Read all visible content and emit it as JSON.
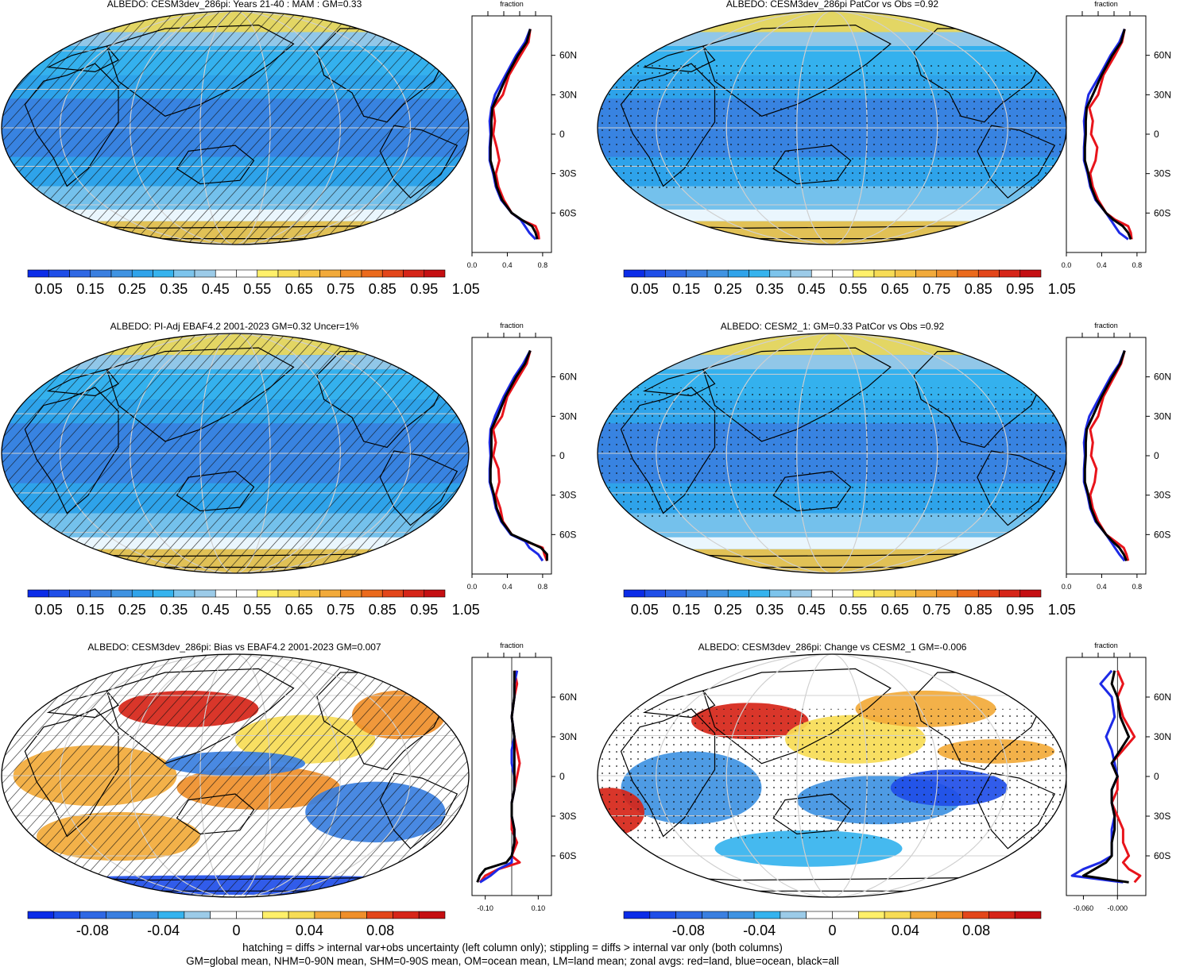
{
  "colors": {
    "scale": [
      "#0b2ce8",
      "#1f4ee8",
      "#2f68e4",
      "#3a7fe0",
      "#3f93e2",
      "#2fa3ea",
      "#35b3ee",
      "#7cc4ec",
      "#9ccbe8",
      "#ffffff",
      "#ffffff",
      "#fff06a",
      "#f7dc55",
      "#f5c446",
      "#f2aa3a",
      "#ef8f2a",
      "#eb6a1c",
      "#e3461a",
      "#d62518",
      "#c50f12"
    ],
    "diffscale": [
      "#0b2ce8",
      "#1f4ee8",
      "#2f68e4",
      "#3a7fe0",
      "#3f93e2",
      "#35b3ee",
      "#9ccbe8",
      "#ffffff",
      "#ffffff",
      "#fff06a",
      "#f7dc55",
      "#f2aa3a",
      "#ef8f2a",
      "#e3461a",
      "#d62518",
      "#c50f12"
    ],
    "land": "#000000",
    "zonal_land": "#e8141b",
    "zonal_ocean": "#1d2ae6",
    "zonal_all": "#000000"
  },
  "panels": [
    {
      "title": "ALBEDO: CESM3dev_286pi: Years 21-40 : MAM : GM=0.33",
      "cbar_labels": [
        "0.05",
        "0.15",
        "0.25",
        "0.35",
        "0.45",
        "0.55",
        "0.65",
        "0.75",
        "0.85",
        "0.95",
        "1.05"
      ],
      "zonal_ticks": [
        "0.0",
        "0.4",
        "0.8"
      ],
      "pattern": "hatch"
    },
    {
      "title": "ALBEDO: CESM3dev_286pi PatCor vs Obs =0.92",
      "cbar_labels": [
        "0.05",
        "0.15",
        "0.25",
        "0.35",
        "0.45",
        "0.55",
        "0.65",
        "0.75",
        "0.85",
        "0.95",
        "1.05"
      ],
      "zonal_ticks": [
        "0.0",
        "0.4",
        "0.8"
      ],
      "pattern": "stipple"
    },
    {
      "title": "ALBEDO: PI-Adj EBAF4.2 2001-2023 GM=0.32 Uncer=1%",
      "cbar_labels": [
        "0.05",
        "0.15",
        "0.25",
        "0.35",
        "0.45",
        "0.55",
        "0.65",
        "0.75",
        "0.85",
        "0.95",
        "1.05"
      ],
      "zonal_ticks": [
        "0.0",
        "0.4",
        "0.8"
      ],
      "pattern": "hatch"
    },
    {
      "title": "ALBEDO: CESM2_1: GM=0.33 PatCor vs Obs =0.92",
      "cbar_labels": [
        "0.05",
        "0.15",
        "0.25",
        "0.35",
        "0.45",
        "0.55",
        "0.65",
        "0.75",
        "0.85",
        "0.95",
        "1.05"
      ],
      "zonal_ticks": [
        "0.0",
        "0.4",
        "0.8"
      ],
      "pattern": "stipple"
    },
    {
      "title": "ALBEDO: CESM3dev_286pi: Bias vs EBAF4.2 2001-2023 GM=0.007",
      "cbar_labels": [
        "-0.08",
        "-0.04",
        "0",
        "0.04",
        "0.08"
      ],
      "zonal_ticks": [
        "-0.10",
        "0.10"
      ],
      "pattern": "hatch"
    },
    {
      "title": "ALBEDO: CESM3dev_286pi: Change vs CESM2_1 GM=-0.006",
      "cbar_labels": [
        "-0.08",
        "-0.04",
        "0",
        "0.04",
        "0.08"
      ],
      "zonal_ticks": [
        "-0.060",
        "-0.000"
      ],
      "pattern": "stipple"
    }
  ],
  "zonal": {
    "axis_title": "fraction",
    "lat_labels": [
      "60N",
      "30N",
      "0",
      "30S",
      "60S"
    ]
  },
  "footer": {
    "line1": "hatching = diffs > internal var+obs uncertainty (left column only); stippling = diffs > internal var only (both columns)",
    "line2": "GM=global mean, NHM=0-90N mean, SHM=0-90S mean, OM=ocean mean, LM=land mean; zonal avgs: red=land, blue=ocean, black=all"
  },
  "chart_data": [
    {
      "type": "heatmap",
      "title": "ALBEDO: CESM3dev_286pi: Years 21-40 : MAM : GM=0.33",
      "colorbar": [
        0.05,
        0.15,
        0.25,
        0.35,
        0.45,
        0.55,
        0.65,
        0.75,
        0.85,
        0.95,
        1.05
      ],
      "global_mean": 0.33,
      "zonal": {
        "xlim": [
          0,
          0.9
        ],
        "lat": [
          80,
          70,
          60,
          45,
          30,
          20,
          10,
          0,
          -10,
          -20,
          -30,
          -40,
          -50,
          -60,
          -65,
          -70,
          -75,
          -80
        ],
        "land": [
          0.66,
          0.64,
          0.55,
          0.42,
          0.35,
          0.24,
          0.26,
          0.24,
          0.28,
          0.31,
          0.27,
          0.3,
          0.36,
          0.45,
          0.55,
          0.72,
          0.75,
          0.76
        ],
        "ocean": [
          0.66,
          0.6,
          0.5,
          0.38,
          0.26,
          0.22,
          0.2,
          0.21,
          0.2,
          0.2,
          0.24,
          0.27,
          0.33,
          0.45,
          0.55,
          0.6,
          0.65,
          0.72
        ],
        "all": [
          0.66,
          0.62,
          0.52,
          0.4,
          0.3,
          0.23,
          0.22,
          0.22,
          0.21,
          0.21,
          0.25,
          0.28,
          0.34,
          0.45,
          0.56,
          0.68,
          0.72,
          0.74
        ]
      }
    },
    {
      "type": "heatmap",
      "title": "ALBEDO: CESM3dev_286pi PatCor vs Obs =0.92",
      "colorbar": [
        0.05,
        0.15,
        0.25,
        0.35,
        0.45,
        0.55,
        0.65,
        0.75,
        0.85,
        0.95,
        1.05
      ],
      "pattern_correlation": 0.92,
      "zonal": {
        "xlim": [
          0,
          0.9
        ],
        "lat": [
          80,
          70,
          60,
          45,
          30,
          20,
          10,
          0,
          -10,
          -20,
          -30,
          -40,
          -50,
          -60,
          -65,
          -70,
          -75,
          -80
        ],
        "land": [
          0.66,
          0.63,
          0.55,
          0.42,
          0.36,
          0.26,
          0.3,
          0.28,
          0.35,
          0.33,
          0.27,
          0.3,
          0.36,
          0.45,
          0.55,
          0.7,
          0.73,
          0.74
        ],
        "ocean": [
          0.66,
          0.6,
          0.5,
          0.38,
          0.25,
          0.22,
          0.2,
          0.21,
          0.2,
          0.2,
          0.24,
          0.27,
          0.33,
          0.45,
          0.5,
          0.55,
          0.6,
          0.7
        ],
        "all": [
          0.66,
          0.62,
          0.52,
          0.4,
          0.3,
          0.23,
          0.22,
          0.22,
          0.21,
          0.21,
          0.25,
          0.28,
          0.34,
          0.45,
          0.53,
          0.64,
          0.7,
          0.73
        ]
      }
    },
    {
      "type": "heatmap",
      "title": "ALBEDO: PI-Adj EBAF4.2 2001-2023 GM=0.32 Uncer=1%",
      "colorbar": [
        0.05,
        0.15,
        0.25,
        0.35,
        0.45,
        0.55,
        0.65,
        0.75,
        0.85,
        0.95,
        1.05
      ],
      "global_mean": 0.32,
      "zonal": {
        "xlim": [
          0,
          0.9
        ],
        "lat": [
          80,
          70,
          60,
          45,
          30,
          20,
          10,
          0,
          -10,
          -20,
          -30,
          -40,
          -50,
          -60,
          -65,
          -70,
          -75,
          -80
        ],
        "land": [
          0.66,
          0.62,
          0.53,
          0.4,
          0.34,
          0.24,
          0.27,
          0.24,
          0.3,
          0.31,
          0.27,
          0.32,
          0.35,
          0.45,
          0.6,
          0.8,
          0.82,
          0.85
        ],
        "ocean": [
          0.66,
          0.58,
          0.48,
          0.36,
          0.26,
          0.21,
          0.2,
          0.21,
          0.2,
          0.2,
          0.24,
          0.27,
          0.33,
          0.44,
          0.6,
          0.65,
          0.75,
          0.8
        ],
        "all": [
          0.66,
          0.6,
          0.5,
          0.38,
          0.29,
          0.22,
          0.22,
          0.22,
          0.21,
          0.21,
          0.25,
          0.28,
          0.34,
          0.45,
          0.62,
          0.78,
          0.85,
          0.85
        ]
      }
    },
    {
      "type": "heatmap",
      "title": "ALBEDO: CESM2_1: GM=0.33 PatCor vs Obs =0.92",
      "colorbar": [
        0.05,
        0.15,
        0.25,
        0.35,
        0.45,
        0.55,
        0.65,
        0.75,
        0.85,
        0.95,
        1.05
      ],
      "global_mean": 0.33,
      "pattern_correlation": 0.92,
      "zonal": {
        "xlim": [
          0,
          0.9
        ],
        "lat": [
          80,
          70,
          60,
          45,
          30,
          20,
          10,
          0,
          -10,
          -20,
          -30,
          -40,
          -50,
          -60,
          -65,
          -70,
          -75,
          -80
        ],
        "land": [
          0.66,
          0.62,
          0.54,
          0.42,
          0.36,
          0.27,
          0.3,
          0.28,
          0.34,
          0.32,
          0.27,
          0.3,
          0.36,
          0.45,
          0.55,
          0.65,
          0.68,
          0.7
        ],
        "ocean": [
          0.66,
          0.6,
          0.5,
          0.38,
          0.26,
          0.22,
          0.2,
          0.21,
          0.2,
          0.2,
          0.24,
          0.27,
          0.33,
          0.45,
          0.5,
          0.55,
          0.6,
          0.66
        ],
        "all": [
          0.66,
          0.61,
          0.52,
          0.4,
          0.3,
          0.23,
          0.22,
          0.22,
          0.21,
          0.21,
          0.25,
          0.28,
          0.34,
          0.45,
          0.52,
          0.6,
          0.65,
          0.68
        ]
      }
    },
    {
      "type": "heatmap",
      "title": "ALBEDO: CESM3dev_286pi: Bias vs EBAF4.2 2001-2023 GM=0.007",
      "colorbar": [
        -0.08,
        -0.04,
        0,
        0.04,
        0.08
      ],
      "global_mean": 0.007,
      "zonal": {
        "xlim": [
          -0.15,
          0.15
        ],
        "lat": [
          80,
          70,
          60,
          45,
          30,
          20,
          10,
          0,
          -10,
          -20,
          -30,
          -40,
          -50,
          -60,
          -65,
          -70,
          -75,
          -80
        ],
        "land": [
          0.01,
          0.02,
          0.01,
          0.0,
          0.01,
          0.02,
          0.03,
          0.02,
          0.01,
          0.0,
          0.0,
          0.0,
          0.02,
          0.0,
          0.03,
          -0.05,
          -0.1,
          -0.12
        ],
        "ocean": [
          0.02,
          0.01,
          0.01,
          0.0,
          0.01,
          0.0,
          0.0,
          0.01,
          0.01,
          0.0,
          0.0,
          0.01,
          0.01,
          0.0,
          0.0,
          -0.05,
          -0.08,
          -0.12
        ],
        "all": [
          0.01,
          0.01,
          0.01,
          0.0,
          0.01,
          0.01,
          0.01,
          0.01,
          0.01,
          0.0,
          0.0,
          0.01,
          0.01,
          0.0,
          -0.02,
          -0.1,
          -0.12,
          -0.13
        ]
      }
    },
    {
      "type": "heatmap",
      "title": "ALBEDO: CESM3dev_286pi: Change vs CESM2_1 GM=-0.006",
      "colorbar": [
        -0.08,
        -0.04,
        0,
        0.04,
        0.08
      ],
      "global_mean": -0.006,
      "zonal": {
        "xlim": [
          -0.09,
          0.05
        ],
        "lat": [
          80,
          70,
          60,
          45,
          30,
          20,
          10,
          0,
          -10,
          -20,
          -30,
          -40,
          -50,
          -60,
          -65,
          -70,
          -75,
          -80
        ],
        "land": [
          0.0,
          0.01,
          0.0,
          0.01,
          0.03,
          0.01,
          -0.01,
          0.0,
          0.0,
          -0.01,
          0.0,
          0.01,
          0.01,
          0.02,
          0.01,
          0.02,
          0.04,
          0.03
        ],
        "ocean": [
          -0.01,
          -0.03,
          -0.01,
          -0.005,
          -0.02,
          -0.01,
          -0.005,
          0.0,
          -0.01,
          -0.01,
          -0.005,
          -0.01,
          -0.01,
          -0.01,
          -0.03,
          -0.06,
          -0.08,
          0.01
        ],
        "all": [
          -0.005,
          -0.01,
          0.0,
          0.005,
          0.02,
          0.005,
          -0.01,
          0.0,
          -0.01,
          -0.01,
          -0.005,
          -0.005,
          -0.01,
          -0.01,
          -0.02,
          -0.04,
          -0.06,
          0.02
        ]
      }
    }
  ]
}
